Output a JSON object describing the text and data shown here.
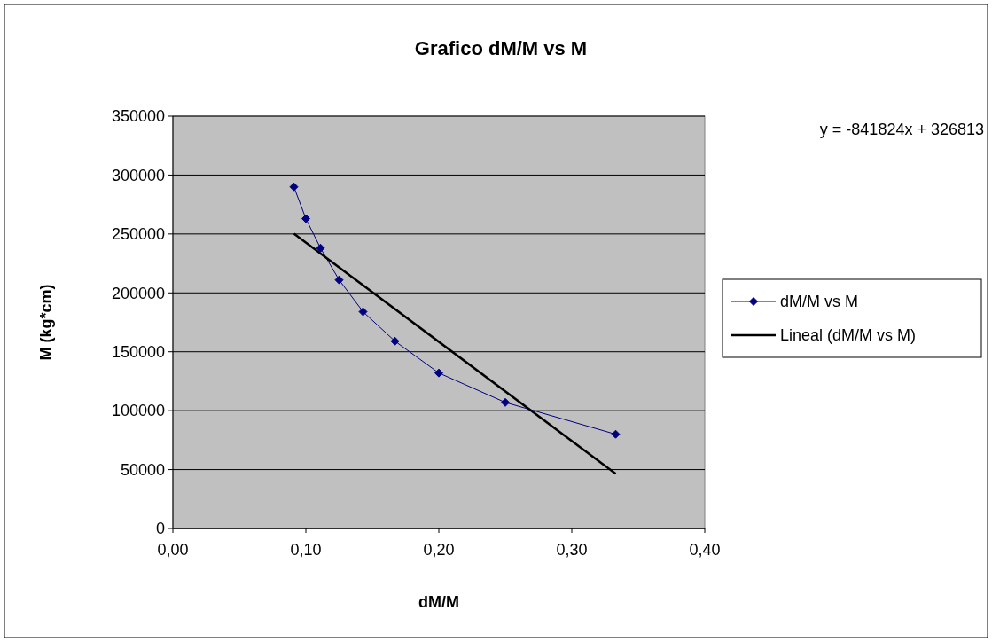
{
  "chart_data": {
    "type": "line",
    "title": "Grafico dM/M vs M",
    "xlabel": "dM/M",
    "ylabel": "M (kg*cm)",
    "xlim": [
      0,
      0.4
    ],
    "xticks": [
      {
        "value": 0,
        "label": "0,00"
      },
      {
        "value": 0.1,
        "label": "0,10"
      },
      {
        "value": 0.2,
        "label": "0,20"
      },
      {
        "value": 0.3,
        "label": "0,30"
      },
      {
        "value": 0.4,
        "label": "0,40"
      }
    ],
    "ylim": [
      0,
      350000
    ],
    "yticks": [
      0,
      50000,
      100000,
      150000,
      200000,
      250000,
      300000,
      350000
    ],
    "grid": "y",
    "legend": "right",
    "marker": "diamond",
    "annotations": [
      "y = -841824x + 326813"
    ],
    "series": [
      {
        "name": "dM/M vs M",
        "color": "#000080",
        "x": [
          0.091,
          0.1,
          0.111,
          0.125,
          0.143,
          0.167,
          0.2,
          0.25,
          0.333
        ],
        "values": [
          290000,
          263000,
          238000,
          211000,
          184000,
          159000,
          132000,
          107000,
          80000
        ]
      },
      {
        "name": "Lineal (dM/M vs M)",
        "color": "#000000",
        "marker": "none",
        "x": [
          0.091,
          0.333
        ],
        "values": [
          250200,
          46500
        ]
      }
    ]
  }
}
